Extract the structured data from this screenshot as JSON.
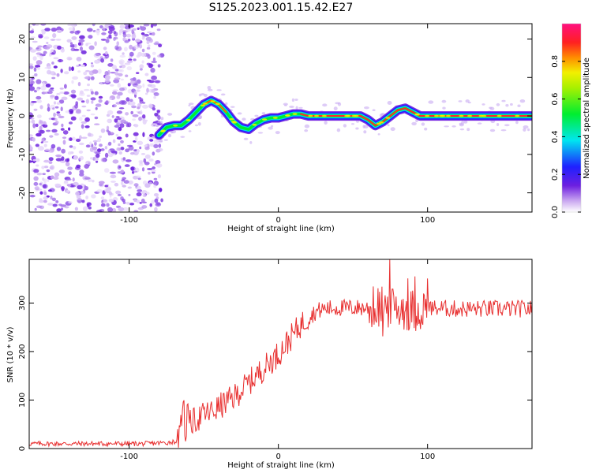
{
  "figure": {
    "title": "S125.2023.001.15.42.E27"
  },
  "chart_data": [
    {
      "type": "heatmap",
      "title": "S125.2023.001.15.42.E27",
      "xlabel": "Height of straight line (km)",
      "ylabel": "Frequency (Hz)",
      "xlim": [
        -167,
        170
      ],
      "ylim": [
        -25,
        24
      ],
      "xticks": [
        -100,
        0,
        100
      ],
      "yticks": [
        -20,
        -10,
        0,
        10,
        20
      ],
      "colorbar": {
        "label": "Normalized spectral amplitude",
        "range": [
          0,
          1
        ],
        "ticks": [
          0.0,
          0.2,
          0.4,
          0.6,
          0.8
        ]
      },
      "noise_region_x": [
        -167,
        -78
      ],
      "ridge": {
        "x": [
          -80,
          -75,
          -70,
          -65,
          -60,
          -55,
          -50,
          -45,
          -40,
          -35,
          -30,
          -25,
          -20,
          -15,
          -10,
          -5,
          0,
          5,
          10,
          15,
          20,
          30,
          40,
          50,
          55,
          60,
          65,
          70,
          75,
          80,
          85,
          90,
          95,
          100,
          120,
          140,
          160,
          170
        ],
        "y": [
          -5,
          -3,
          -2.5,
          -2.5,
          -1,
          1,
          3,
          4,
          3,
          1,
          -1.5,
          -3,
          -3.5,
          -2,
          -1,
          -0.5,
          -0.5,
          0,
          0.5,
          0.5,
          0,
          0,
          0,
          0,
          0,
          -1,
          -2.5,
          -1.5,
          0,
          1.5,
          2,
          1,
          0,
          0,
          0,
          0,
          0,
          0
        ]
      }
    },
    {
      "type": "line",
      "xlabel": "Height of straight line (km)",
      "ylabel": "SNR (10 * v/v)",
      "xlim": [
        -167,
        170
      ],
      "ylim": [
        0,
        390
      ],
      "xticks": [
        -100,
        0,
        100
      ],
      "yticks": [
        0,
        100,
        200,
        300
      ],
      "color": "#e83030",
      "series": [
        {
          "x": [
            -167,
            -150,
            -130,
            -110,
            -90,
            -75,
            -68,
            -64,
            -60,
            -55,
            -50,
            -45,
            -40,
            -35,
            -30,
            -25,
            -20,
            -15,
            -10,
            -5,
            0,
            5,
            10,
            15,
            20,
            25,
            30,
            40,
            50,
            60,
            70,
            80,
            90,
            100,
            120,
            140,
            160,
            170
          ],
          "y": [
            10,
            10,
            10,
            10,
            10,
            12,
            15,
            30,
            50,
            60,
            70,
            75,
            85,
            95,
            105,
            120,
            135,
            150,
            165,
            180,
            195,
            215,
            235,
            255,
            270,
            282,
            288,
            290,
            290,
            290,
            292,
            290,
            285,
            290,
            288,
            288,
            288,
            288
          ]
        }
      ]
    }
  ]
}
